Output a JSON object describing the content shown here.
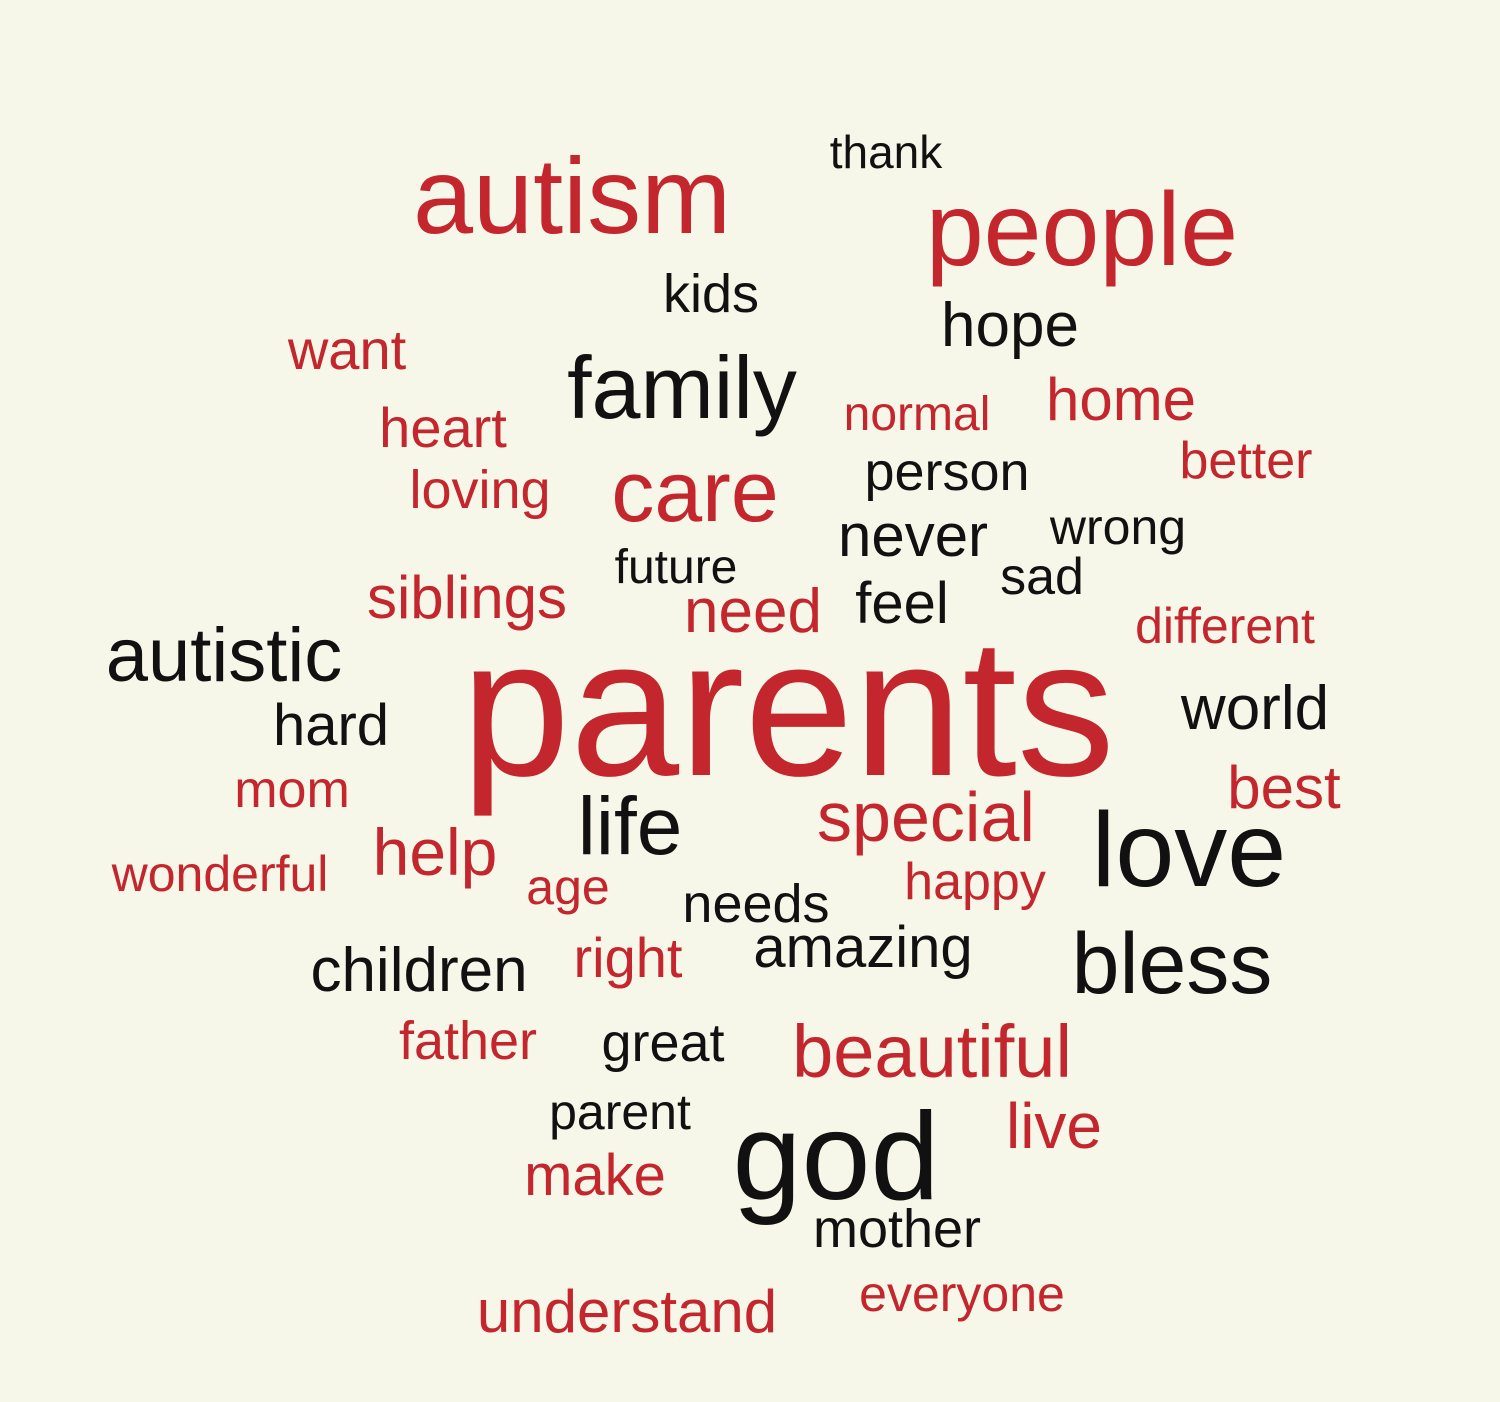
{
  "colors": {
    "background": "#f7f7e9",
    "red": "#c4262e",
    "black": "#111111"
  },
  "words": [
    {
      "text": "parents",
      "color": "red"
    },
    {
      "text": "autism",
      "color": "red"
    },
    {
      "text": "people",
      "color": "red"
    },
    {
      "text": "thank",
      "color": "black"
    },
    {
      "text": "kids",
      "color": "black"
    },
    {
      "text": "hope",
      "color": "black"
    },
    {
      "text": "want",
      "color": "red"
    },
    {
      "text": "family",
      "color": "black"
    },
    {
      "text": "normal",
      "color": "red"
    },
    {
      "text": "home",
      "color": "red"
    },
    {
      "text": "heart",
      "color": "red"
    },
    {
      "text": "better",
      "color": "red"
    },
    {
      "text": "loving",
      "color": "red"
    },
    {
      "text": "care",
      "color": "red"
    },
    {
      "text": "person",
      "color": "black"
    },
    {
      "text": "never",
      "color": "black"
    },
    {
      "text": "wrong",
      "color": "black"
    },
    {
      "text": "future",
      "color": "black"
    },
    {
      "text": "sad",
      "color": "black"
    },
    {
      "text": "siblings",
      "color": "red"
    },
    {
      "text": "need",
      "color": "red"
    },
    {
      "text": "feel",
      "color": "black"
    },
    {
      "text": "different",
      "color": "red"
    },
    {
      "text": "autistic",
      "color": "black"
    },
    {
      "text": "world",
      "color": "black"
    },
    {
      "text": "hard",
      "color": "black"
    },
    {
      "text": "mom",
      "color": "red"
    },
    {
      "text": "best",
      "color": "red"
    },
    {
      "text": "life",
      "color": "black"
    },
    {
      "text": "special",
      "color": "red"
    },
    {
      "text": "love",
      "color": "black"
    },
    {
      "text": "help",
      "color": "red"
    },
    {
      "text": "wonderful",
      "color": "red"
    },
    {
      "text": "age",
      "color": "red"
    },
    {
      "text": "happy",
      "color": "red"
    },
    {
      "text": "needs",
      "color": "black"
    },
    {
      "text": "amazing",
      "color": "black"
    },
    {
      "text": "children",
      "color": "black"
    },
    {
      "text": "right",
      "color": "red"
    },
    {
      "text": "bless",
      "color": "black"
    },
    {
      "text": "father",
      "color": "red"
    },
    {
      "text": "great",
      "color": "black"
    },
    {
      "text": "beautiful",
      "color": "red"
    },
    {
      "text": "parent",
      "color": "black"
    },
    {
      "text": "live",
      "color": "red"
    },
    {
      "text": "god",
      "color": "black"
    },
    {
      "text": "make",
      "color": "red"
    },
    {
      "text": "mother",
      "color": "black"
    },
    {
      "text": "everyone",
      "color": "red"
    },
    {
      "text": "understand",
      "color": "red"
    }
  ]
}
